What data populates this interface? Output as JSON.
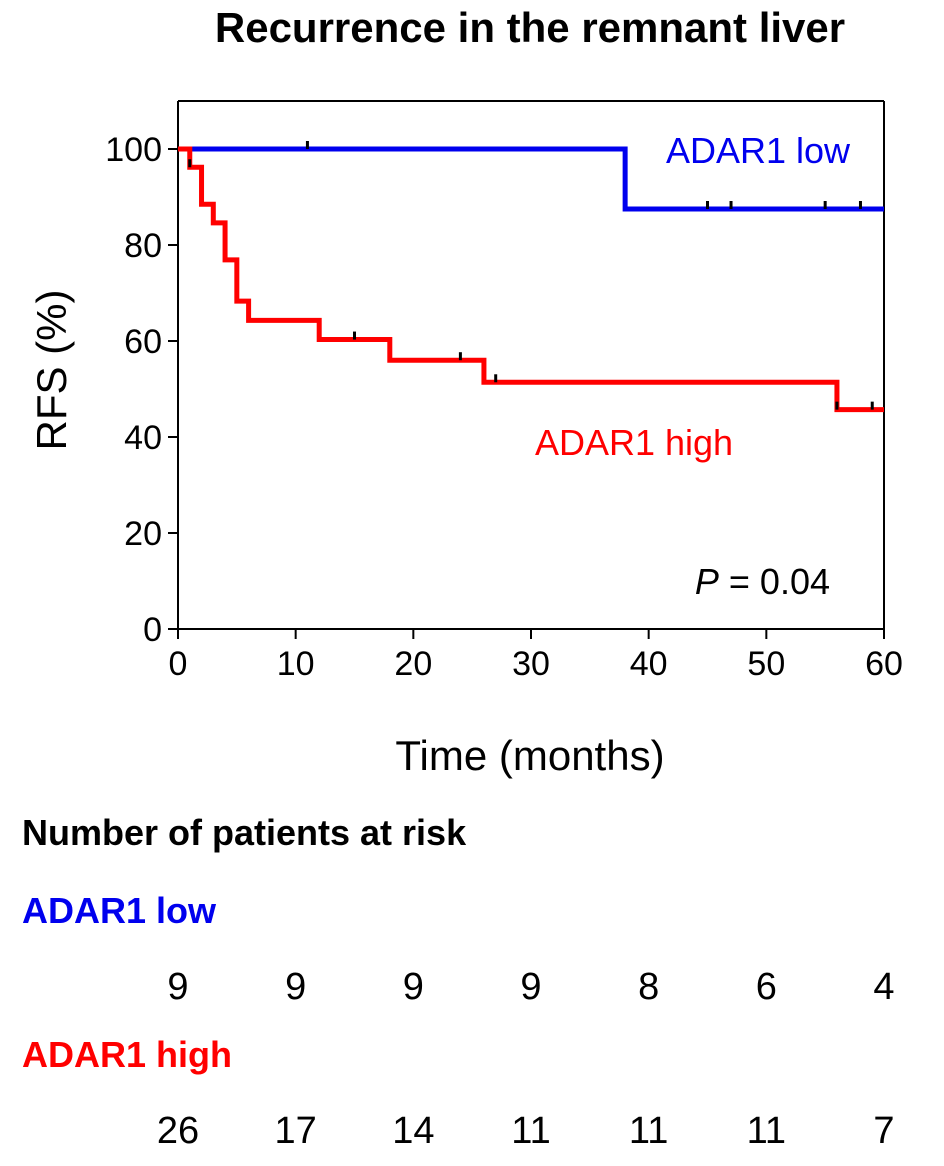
{
  "chart_data": {
    "type": "line",
    "subtype": "kaplan-meier",
    "title": "Recurrence in the remnant liver",
    "xlabel": "Time (months)",
    "ylabel": "RFS  (%)",
    "xlim": [
      0,
      60
    ],
    "ylim": [
      0,
      110
    ],
    "xticks": [
      0,
      10,
      20,
      30,
      40,
      50,
      60
    ],
    "yticks": [
      0,
      20,
      40,
      60,
      80,
      100
    ],
    "grid": false,
    "annotation": {
      "prefix": "P",
      "text": " = 0.04"
    },
    "series": [
      {
        "name": "ADAR1 low",
        "color": "#0000ee",
        "steps": [
          [
            0,
            100
          ],
          [
            38,
            87.5
          ],
          [
            60,
            87.5
          ]
        ],
        "censors": [
          [
            11,
            100
          ],
          [
            45,
            87.5
          ],
          [
            47,
            87.5
          ],
          [
            55,
            87.5
          ],
          [
            58,
            87.5
          ]
        ]
      },
      {
        "name": "ADAR1 high",
        "color": "#ff0000",
        "steps": [
          [
            0,
            100
          ],
          [
            1,
            96.2
          ],
          [
            2,
            88.5
          ],
          [
            3,
            84.6
          ],
          [
            4,
            76.9
          ],
          [
            5,
            68.3
          ],
          [
            6,
            64.3
          ],
          [
            12,
            60.3
          ],
          [
            18,
            56.0
          ],
          [
            26,
            51.4
          ],
          [
            56,
            45.7
          ],
          [
            60,
            45.7
          ]
        ],
        "censors": [
          [
            1,
            96.2
          ],
          [
            15,
            60.3
          ],
          [
            24,
            56.0
          ],
          [
            27,
            51.4
          ],
          [
            56,
            45.7
          ],
          [
            59,
            45.7
          ]
        ]
      }
    ],
    "at_risk": {
      "header": "Number of patients at risk",
      "timepoints": [
        0,
        10,
        20,
        30,
        40,
        50,
        60
      ],
      "groups": [
        {
          "name": "ADAR1 low",
          "color": "#0000ee",
          "counts": [
            "9",
            "9",
            "9",
            "9",
            "8",
            "6",
            "4"
          ]
        },
        {
          "name": "ADAR1 high",
          "color": "#ff0000",
          "counts": [
            "26",
            "17",
            "14",
            "11",
            "11",
            "11",
            "7"
          ]
        }
      ]
    }
  }
}
